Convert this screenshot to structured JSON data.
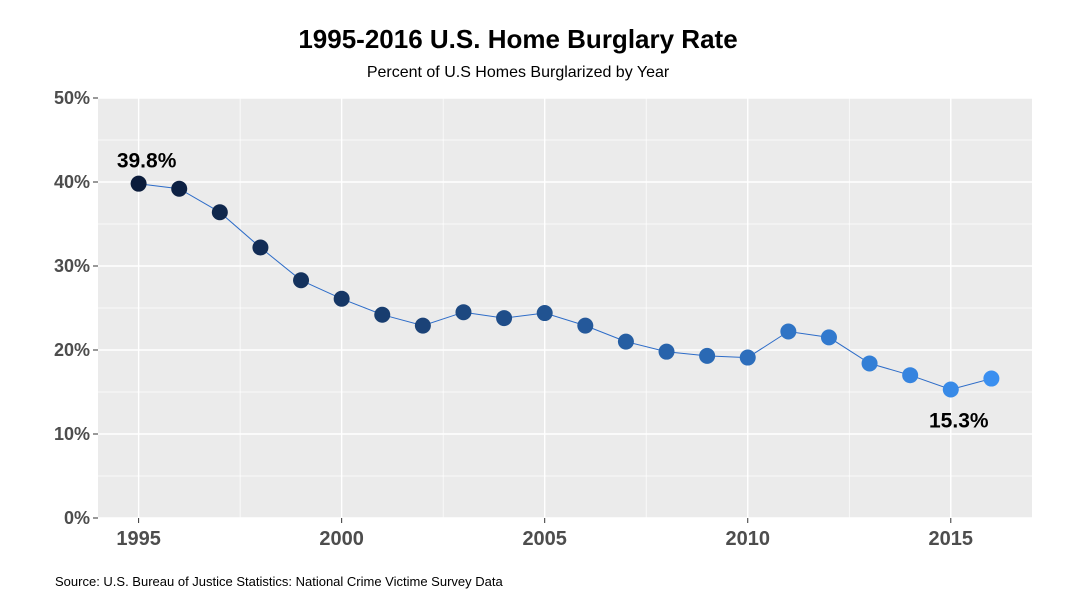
{
  "chart_data": {
    "type": "line",
    "title": "1995-2016 U.S. Home Burglary Rate",
    "subtitle": "Percent of U.S Homes Burglarized by Year",
    "caption": "Source: U.S. Bureau of Justice Statistics: National Crime Victime Survey Data",
    "xlabel": "",
    "ylabel": "",
    "x": [
      1995,
      1996,
      1997,
      1998,
      1999,
      2000,
      2001,
      2002,
      2003,
      2004,
      2005,
      2006,
      2007,
      2008,
      2009,
      2010,
      2011,
      2012,
      2013,
      2014,
      2015,
      2016
    ],
    "values": [
      39.8,
      39.2,
      36.4,
      32.2,
      28.3,
      26.1,
      24.2,
      22.9,
      24.5,
      23.8,
      24.4,
      22.9,
      21.0,
      19.8,
      19.3,
      19.1,
      22.2,
      21.5,
      18.4,
      17.0,
      15.3,
      16.6
    ],
    "xlim": [
      1994,
      2017
    ],
    "ylim": [
      0,
      50
    ],
    "x_ticks": [
      "1995",
      "2000",
      "2005",
      "2010",
      "2015"
    ],
    "y_ticks": [
      "0%",
      "10%",
      "20%",
      "30%",
      "40%",
      "50%"
    ],
    "annotations": [
      {
        "year": 1995,
        "text": "39.8%",
        "placement": "above"
      },
      {
        "year": 2015,
        "text": "15.3%",
        "placement": "below"
      }
    ],
    "point_color_start": "#0b1c3b",
    "point_color_end": "#3a8ff0",
    "line_color": "#2d6cc8",
    "panel_color": "#ebebeb",
    "grid_color": "#ffffff",
    "grid": true,
    "legend": "none"
  }
}
